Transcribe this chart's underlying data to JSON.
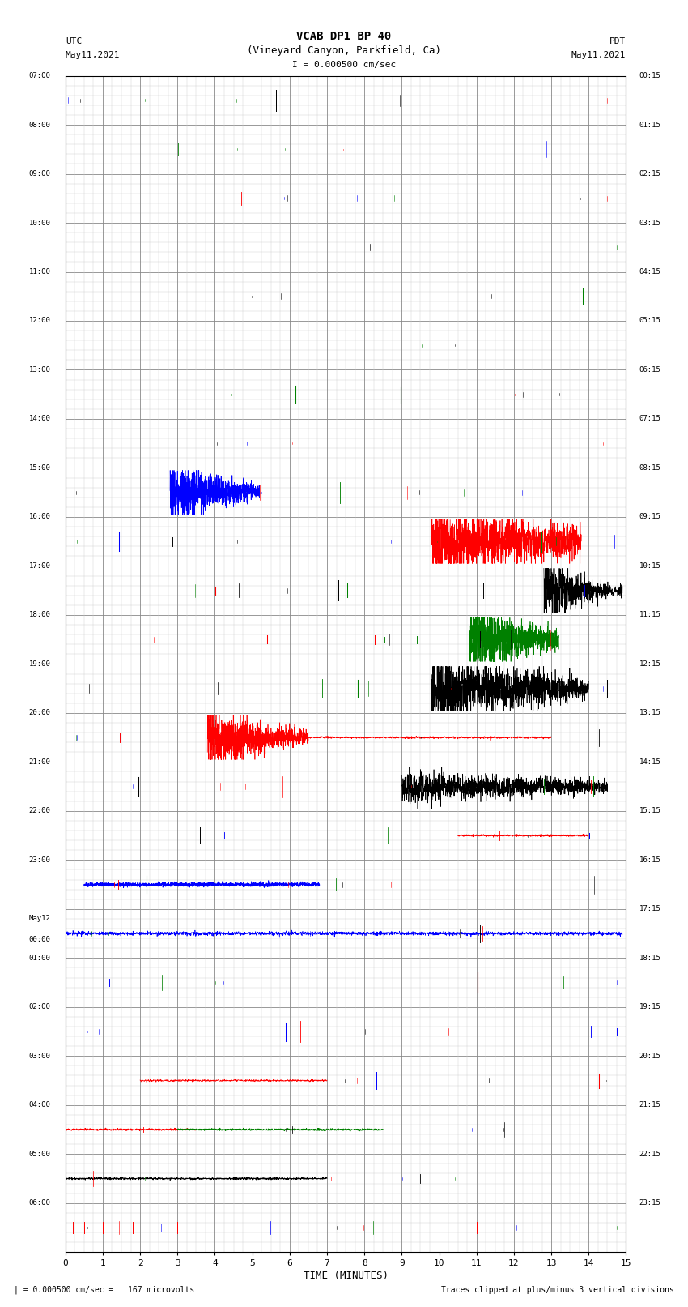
{
  "title_line1": "VCAB DP1 BP 40",
  "title_line2": "(Vineyard Canyon, Parkfield, Ca)",
  "scale_label": "I = 0.000500 cm/sec",
  "utc_label": "UTC",
  "utc_date": "May11,2021",
  "pdt_label": "PDT",
  "pdt_date": "May11,2021",
  "xlabel": "TIME (MINUTES)",
  "bottom_left": "| = 0.000500 cm/sec =   167 microvolts",
  "bottom_right": "Traces clipped at plus/minus 3 vertical divisions",
  "num_rows": 24,
  "bg_color": "#ffffff",
  "major_grid_color": "#888888",
  "minor_grid_color": "#cccccc",
  "left_labels_utc": [
    "07:00",
    "08:00",
    "09:00",
    "10:00",
    "11:00",
    "12:00",
    "13:00",
    "14:00",
    "15:00",
    "16:00",
    "17:00",
    "18:00",
    "19:00",
    "20:00",
    "21:00",
    "22:00",
    "23:00",
    "May12\n00:00",
    "01:00",
    "02:00",
    "03:00",
    "04:00",
    "05:00",
    "06:00"
  ],
  "right_labels_pdt": [
    "00:15",
    "01:15",
    "02:15",
    "03:15",
    "04:15",
    "05:15",
    "06:15",
    "07:15",
    "08:15",
    "09:15",
    "10:15",
    "11:15",
    "12:15",
    "13:15",
    "14:15",
    "15:15",
    "16:15",
    "17:15",
    "18:15",
    "19:15",
    "20:15",
    "21:15",
    "22:15",
    "23:15"
  ]
}
